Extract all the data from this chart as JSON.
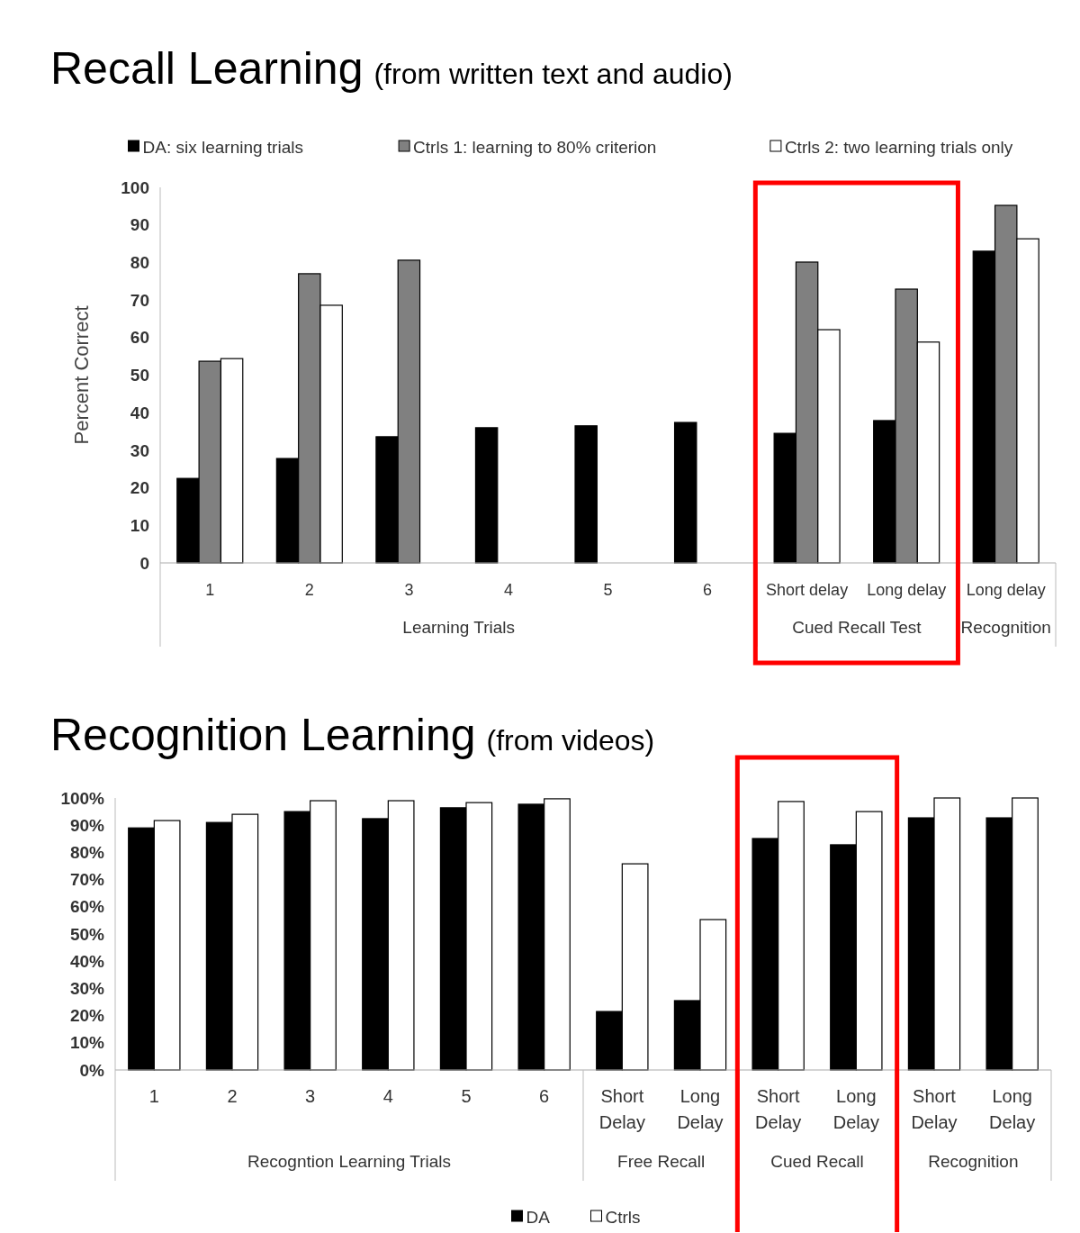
{
  "chart_data": [
    {
      "type": "bar",
      "title": "Recall Learning",
      "subtitle": "(from written text and audio)",
      "ylabel": "Percent Correct",
      "categories": [
        "1",
        "2",
        "3",
        "4",
        "5",
        "6",
        "Short delay",
        "Long delay",
        "Long delay"
      ],
      "series": [
        {
          "name": "DA: six learning trials",
          "color": "#000000",
          "values": [
            22.5,
            27.8,
            33.6,
            36,
            36.5,
            37.4,
            34.5,
            37.9,
            83
          ]
        },
        {
          "name": "Ctrls 1: learning to 80% criterion",
          "color": "#808080",
          "values": [
            53.7,
            77,
            80.6,
            null,
            null,
            null,
            80.1,
            72.9,
            95.2
          ]
        },
        {
          "name": "Ctrls 2: two learning trials only",
          "color": "#ffffff",
          "values": [
            54.4,
            68.6,
            null,
            null,
            null,
            null,
            62.1,
            58.8,
            86.3
          ]
        }
      ],
      "ylim": [
        0,
        100
      ],
      "yticks": [
        0,
        10,
        20,
        30,
        40,
        50,
        60,
        70,
        80,
        90,
        100
      ],
      "legend": "top",
      "annotations": [
        "Learning Trials",
        "Cued Recall Test",
        "Recognition"
      ]
    },
    {
      "type": "bar",
      "title": "Recognition Learning",
      "subtitle": "(from videos)",
      "categories": [
        "1",
        "2",
        "3",
        "4",
        "5",
        "6",
        "Short Delay",
        "Long Delay",
        "Short Delay",
        "Long Delay",
        "Short Delay",
        "Long Delay"
      ],
      "series": [
        {
          "name": "DA",
          "color": "#000000",
          "values": [
            89,
            91,
            95,
            92.4,
            96.4,
            97.7,
            21.5,
            25.5,
            85.1,
            82.8,
            92.7,
            92.7
          ]
        },
        {
          "name": "Ctrls",
          "color": "#ffffff",
          "values": [
            91.7,
            94,
            99,
            99,
            98.3,
            99.7,
            75.8,
            55.3,
            98.7,
            95,
            100,
            100
          ]
        }
      ],
      "ylim": [
        0,
        100
      ],
      "yticks": [
        {
          "value": 0,
          "label": "0%"
        },
        {
          "value": 10,
          "label": "10%"
        },
        {
          "value": 20,
          "label": "20%"
        },
        {
          "value": 30,
          "label": "30%"
        },
        {
          "value": 40,
          "label": "40%"
        },
        {
          "value": 50,
          "label": "50%"
        },
        {
          "value": 60,
          "label": "60%"
        },
        {
          "value": 70,
          "label": "70%"
        },
        {
          "value": 80,
          "label": "80%"
        },
        {
          "value": 90,
          "label": "90%"
        },
        {
          "value": 100,
          "label": "100%"
        }
      ],
      "legend": "bottom",
      "annotations": [
        "Recogntion Learning Trials",
        "Free Recall",
        "Cued Recall",
        "Recognition"
      ]
    }
  ]
}
